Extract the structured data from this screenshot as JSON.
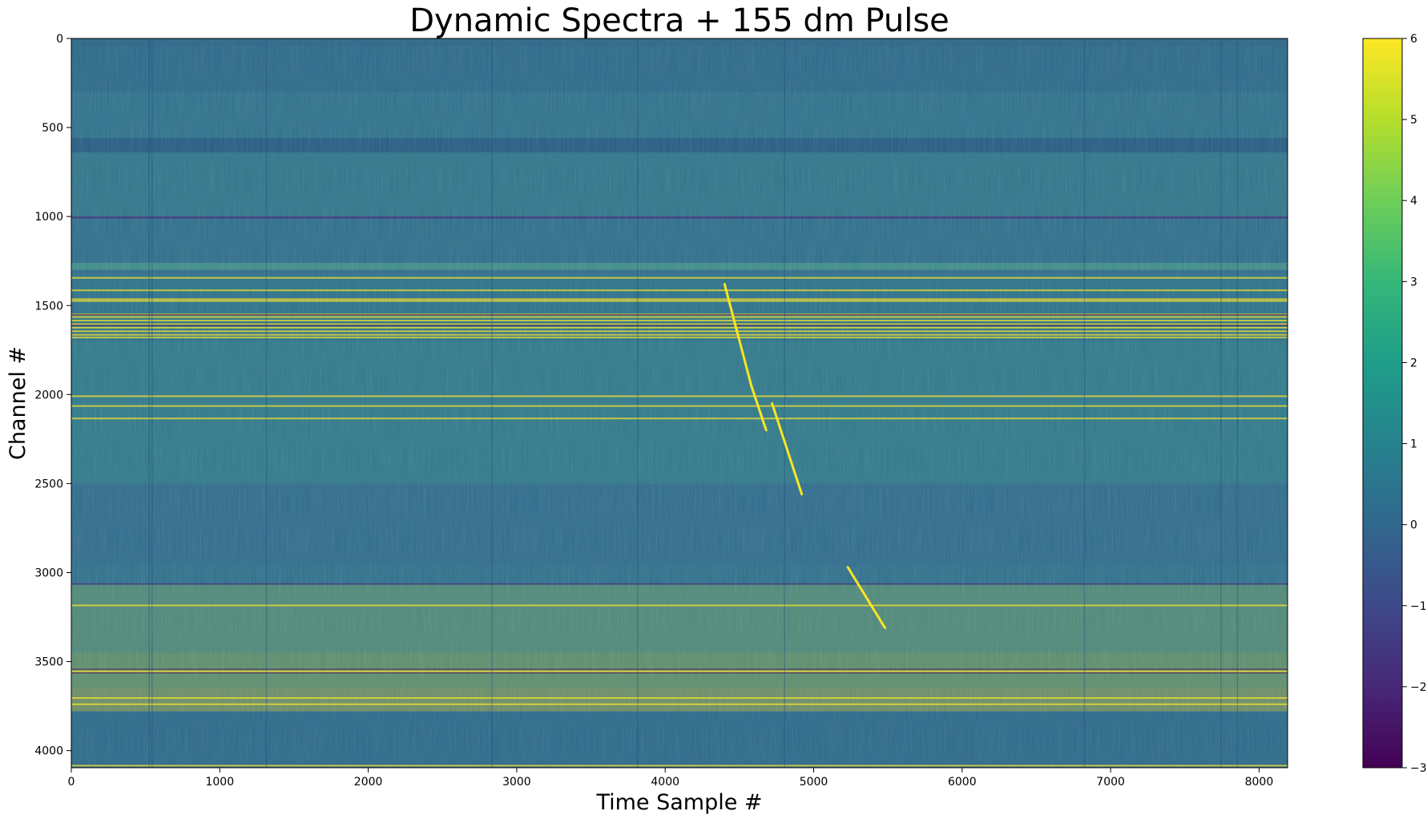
{
  "chart_data": {
    "type": "heatmap",
    "title": "Dynamic Spectra + 155 dm Pulse",
    "xlabel": "Time Sample #",
    "ylabel": "Channel #",
    "xlim": [
      0,
      8192
    ],
    "ylim": [
      4096,
      0
    ],
    "y_inverted": true,
    "colormap": "viridis",
    "color_range": [
      -3,
      6
    ],
    "grid": false,
    "x_ticks": [
      0,
      1000,
      2000,
      3000,
      4000,
      5000,
      6000,
      7000,
      8000
    ],
    "y_ticks": [
      0,
      500,
      1000,
      1500,
      2000,
      2500,
      3000,
      3500,
      4000
    ],
    "colorbar_ticks": [
      -3,
      -2,
      -1,
      0,
      1,
      2,
      3,
      4,
      5,
      6
    ],
    "pulse_segments": [
      {
        "name": "pulse-band-1",
        "x": [
          4400,
          4580
        ],
        "y": [
          1380,
          1950
        ]
      },
      {
        "name": "pulse-band-2",
        "x": [
          4580,
          4680
        ],
        "y": [
          1950,
          2200
        ]
      },
      {
        "name": "pulse-band-3",
        "x": [
          4720,
          4920
        ],
        "y": [
          2050,
          2560
        ]
      },
      {
        "name": "pulse-band-4",
        "x": [
          5230,
          5480
        ],
        "y": [
          2970,
          3310
        ]
      }
    ],
    "colors": {
      "background": "#2f6d8e",
      "bright": "#f8e621",
      "dark": "#440154"
    }
  }
}
